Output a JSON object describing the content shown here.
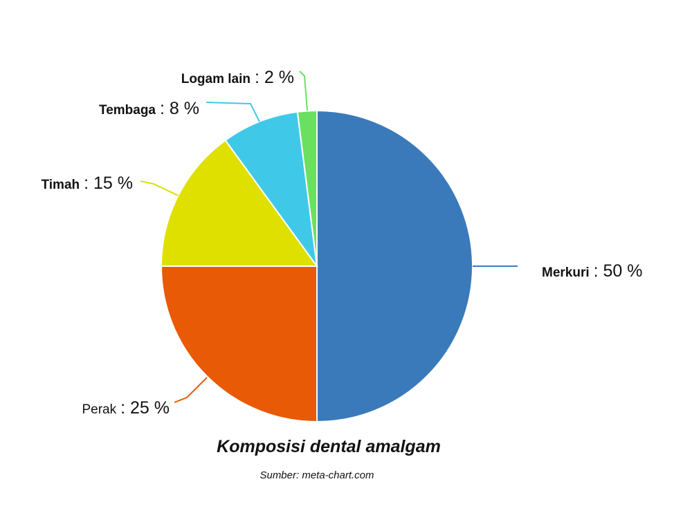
{
  "chart_data": {
    "type": "pie",
    "title": "Komposisi dental amalgam",
    "subtitle": "Sumber: meta-chart.com",
    "categories": [
      "Merkuri",
      "Perak",
      "Timah",
      "Tembaga",
      "Logam lain"
    ],
    "values": [
      50,
      25,
      15,
      8,
      2
    ],
    "value_labels": [
      ": 50 %",
      ": 25 %",
      ": 15 %",
      ": 8 %",
      ": 2 %"
    ],
    "colors": [
      "#3a7aba",
      "#e85a05",
      "#dfe000",
      "#40c8e8",
      "#6be060"
    ]
  }
}
